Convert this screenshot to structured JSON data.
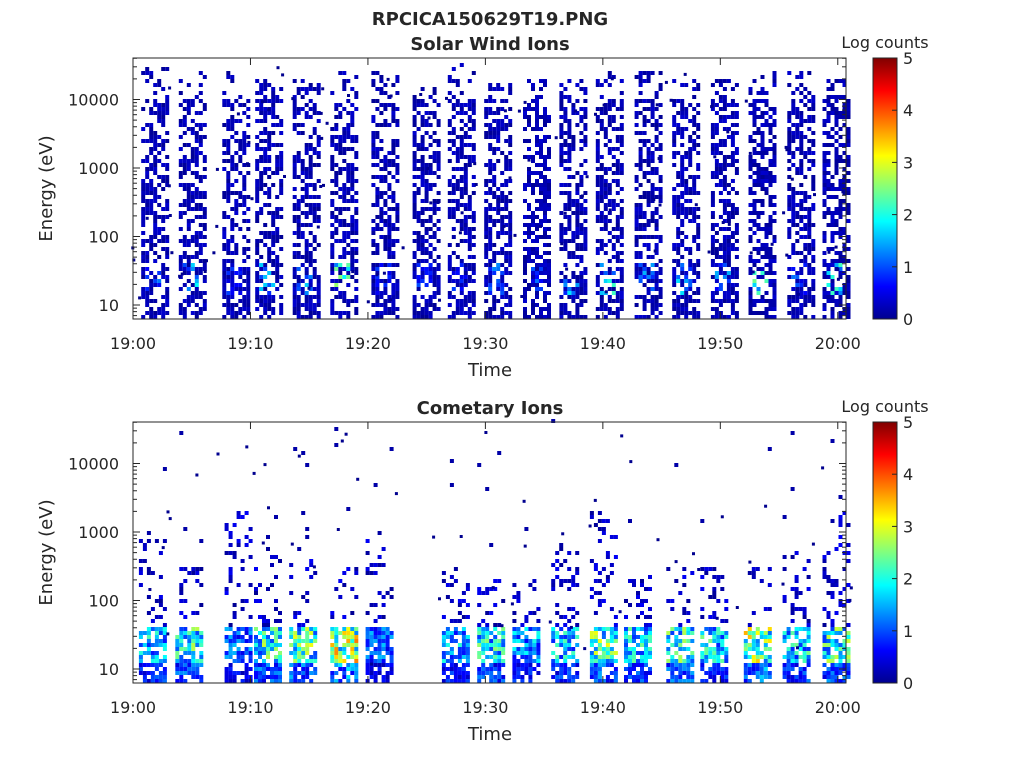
{
  "title": "RPCICA150629T19.PNG",
  "chart_data": [
    {
      "type": "heatmap",
      "title": "Solar Wind Ions",
      "xlabel": "Time",
      "ylabel": "Energy (eV)",
      "xticks": [
        "19:00",
        "19:10",
        "19:20",
        "19:30",
        "19:40",
        "19:50",
        "20:00"
      ],
      "yticks": [
        "10",
        "100",
        "1000",
        "10000"
      ],
      "xlim_minutes": [
        0,
        60.7
      ],
      "ylim_eV": [
        6.3,
        40000
      ],
      "yscale": "log",
      "colorbar": {
        "label": "Log counts",
        "ticks": [
          "0",
          "1",
          "2",
          "3",
          "4",
          "5"
        ],
        "range": [
          0,
          5
        ],
        "colormap": "jet"
      },
      "bursts": [
        {
          "t": 1.7,
          "peak_log": 1.3,
          "max_eV": 30000
        },
        {
          "t": 4.9,
          "peak_log": 1.9,
          "max_eV": 25000
        },
        {
          "t": 8.6,
          "peak_log": 1.0,
          "max_eV": 25000
        },
        {
          "t": 11.4,
          "peak_log": 1.9,
          "max_eV": 20000
        },
        {
          "t": 14.6,
          "peak_log": 2.0,
          "max_eV": 20000
        },
        {
          "t": 17.8,
          "peak_log": 2.7,
          "max_eV": 25000
        },
        {
          "t": 21.3,
          "peak_log": 1.0,
          "max_eV": 25000
        },
        {
          "t": 24.8,
          "peak_log": 1.0,
          "max_eV": 15000
        },
        {
          "t": 27.8,
          "peak_log": 1.2,
          "max_eV": 35000
        },
        {
          "t": 30.9,
          "peak_log": 1.8,
          "max_eV": 20000
        },
        {
          "t": 34.2,
          "peak_log": 1.2,
          "max_eV": 20000
        },
        {
          "t": 37.3,
          "peak_log": 1.9,
          "max_eV": 20000
        },
        {
          "t": 40.4,
          "peak_log": 2.2,
          "max_eV": 25000
        },
        {
          "t": 43.7,
          "peak_log": 1.5,
          "max_eV": 30000
        },
        {
          "t": 46.9,
          "peak_log": 1.8,
          "max_eV": 20000
        },
        {
          "t": 50.2,
          "peak_log": 1.5,
          "max_eV": 20000
        },
        {
          "t": 53.4,
          "peak_log": 2.6,
          "max_eV": 25000
        },
        {
          "t": 56.7,
          "peak_log": 1.2,
          "max_eV": 25000
        },
        {
          "t": 59.7,
          "peak_log": 2.6,
          "max_eV": 20000
        }
      ]
    },
    {
      "type": "heatmap",
      "title": "Cometary Ions",
      "xlabel": "Time",
      "ylabel": "Energy (eV)",
      "xticks": [
        "19:00",
        "19:10",
        "19:20",
        "19:30",
        "19:40",
        "19:50",
        "20:00"
      ],
      "yticks": [
        "10",
        "100",
        "1000",
        "10000"
      ],
      "xlim_minutes": [
        0,
        60.7
      ],
      "ylim_eV": [
        6.3,
        40000
      ],
      "yscale": "log",
      "colorbar": {
        "label": "Log counts",
        "ticks": [
          "0",
          "1",
          "2",
          "3",
          "4",
          "5"
        ],
        "range": [
          0,
          5
        ],
        "colormap": "jet"
      },
      "bursts": [
        {
          "t": 1.5,
          "peak_log": 2.3,
          "max_eV": 800
        },
        {
          "t": 4.6,
          "peak_log": 2.8,
          "max_eV": 300
        },
        {
          "t": 8.8,
          "peak_log": 1.6,
          "max_eV": 2000
        },
        {
          "t": 11.3,
          "peak_log": 2.9,
          "max_eV": 600
        },
        {
          "t": 14.3,
          "peak_log": 3.1,
          "max_eV": 400
        },
        {
          "t": 17.8,
          "peak_log": 3.9,
          "max_eV": 300
        },
        {
          "t": 20.8,
          "peak_log": 1.6,
          "max_eV": 1000
        },
        {
          "t": 27.3,
          "peak_log": 2.1,
          "max_eV": 300
        },
        {
          "t": 30.3,
          "peak_log": 2.6,
          "max_eV": 200
        },
        {
          "t": 33.3,
          "peak_log": 2.0,
          "max_eV": 200
        },
        {
          "t": 36.6,
          "peak_log": 2.3,
          "max_eV": 700
        },
        {
          "t": 39.9,
          "peak_log": 3.1,
          "max_eV": 2000
        },
        {
          "t": 42.8,
          "peak_log": 2.5,
          "max_eV": 300
        },
        {
          "t": 46.4,
          "peak_log": 2.9,
          "max_eV": 300
        },
        {
          "t": 49.3,
          "peak_log": 2.5,
          "max_eV": 300
        },
        {
          "t": 53.0,
          "peak_log": 3.6,
          "max_eV": 300
        },
        {
          "t": 56.3,
          "peak_log": 2.5,
          "max_eV": 500
        },
        {
          "t": 59.7,
          "peak_log": 2.9,
          "max_eV": 2000
        }
      ]
    }
  ]
}
